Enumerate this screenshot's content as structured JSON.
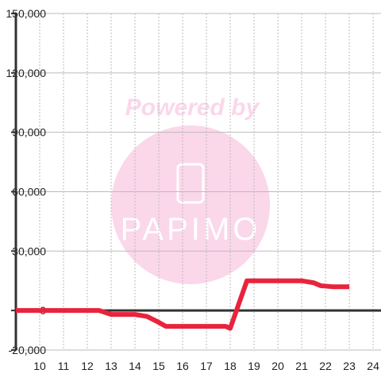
{
  "chart_data": {
    "type": "line",
    "watermark": {
      "title": "Powered by",
      "logo": "PAPIMO"
    },
    "x": [
      9,
      12.5,
      13,
      14,
      14.5,
      15,
      15.3,
      17,
      17.8,
      18,
      18.7,
      21,
      21.5,
      21.8,
      22.3,
      23
    ],
    "series": [
      {
        "color": "#e8243c",
        "values": [
          0,
          0,
          -2000,
          -2000,
          -3000,
          -6000,
          -8000,
          -8000,
          -8000,
          -9000,
          15000,
          15000,
          14000,
          12500,
          12000,
          12000
        ]
      }
    ],
    "xlim": [
      9,
      24.33
    ],
    "xticks": [
      10,
      11,
      12,
      13,
      14,
      15,
      16,
      17,
      18,
      19,
      20,
      21,
      22,
      23,
      24
    ],
    "ylim": [
      -20000,
      150000
    ],
    "yticks": [
      {
        "value": -20000,
        "label": "-20,000"
      },
      {
        "value": 0,
        "label": "0"
      },
      {
        "value": 30000,
        "label": "30,000"
      },
      {
        "value": 60000,
        "label": "60,000"
      },
      {
        "value": 90000,
        "label": "90,000"
      },
      {
        "value": 120000,
        "label": "120,000"
      },
      {
        "value": 150000,
        "label": "150,000"
      }
    ],
    "grid": true
  }
}
